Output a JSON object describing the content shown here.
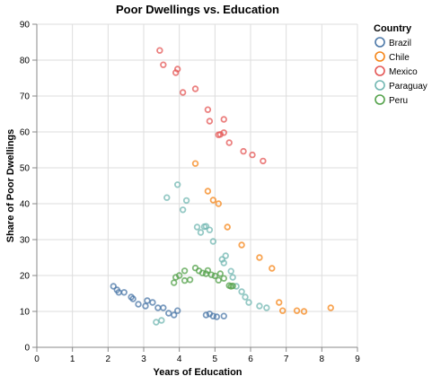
{
  "chart_data": {
    "type": "scatter",
    "title": "Poor Dwellings vs. Education",
    "xlabel": "Years of Education",
    "ylabel": "Share of Poor Dwellings",
    "xlim": [
      0,
      9
    ],
    "ylim": [
      0,
      90
    ],
    "x_ticks": [
      "0",
      "1",
      "2",
      "3",
      "4",
      "5",
      "6",
      "7",
      "8",
      "9"
    ],
    "y_ticks": [
      "0",
      "10",
      "20",
      "30",
      "40",
      "50",
      "60",
      "70",
      "80",
      "90"
    ],
    "grid": true,
    "legend_title": "Country",
    "legend_position": "right",
    "series": [
      {
        "name": "Brazil",
        "color": "#4c78a8",
        "points": [
          [
            2.15,
            17
          ],
          [
            2.25,
            16
          ],
          [
            2.3,
            15.3
          ],
          [
            2.45,
            15.3
          ],
          [
            2.65,
            14
          ],
          [
            2.7,
            13.5
          ],
          [
            2.85,
            12
          ],
          [
            3.05,
            11.5
          ],
          [
            3.1,
            13
          ],
          [
            3.25,
            12.5
          ],
          [
            3.4,
            11
          ],
          [
            3.55,
            11
          ],
          [
            3.7,
            9.5
          ],
          [
            3.85,
            9
          ],
          [
            3.95,
            10.2
          ],
          [
            4.75,
            9
          ],
          [
            4.85,
            9.3
          ],
          [
            4.95,
            8.7
          ],
          [
            5.05,
            8.5
          ],
          [
            5.25,
            8.7
          ]
        ]
      },
      {
        "name": "Chile",
        "color": "#f58518",
        "points": [
          [
            4.45,
            51.2
          ],
          [
            4.8,
            43.5
          ],
          [
            4.95,
            41
          ],
          [
            5.1,
            40
          ],
          [
            5.35,
            33.5
          ],
          [
            5.75,
            28.5
          ],
          [
            6.25,
            25
          ],
          [
            6.6,
            22
          ],
          [
            6.8,
            12.5
          ],
          [
            6.9,
            10.2
          ],
          [
            7.3,
            10.2
          ],
          [
            7.5,
            10
          ],
          [
            8.25,
            11
          ]
        ]
      },
      {
        "name": "Mexico",
        "color": "#e45756",
        "points": [
          [
            3.45,
            82.7
          ],
          [
            3.55,
            78.7
          ],
          [
            3.9,
            76.5
          ],
          [
            3.95,
            77.5
          ],
          [
            4.1,
            71
          ],
          [
            4.45,
            72
          ],
          [
            4.8,
            66.2
          ],
          [
            4.85,
            63
          ],
          [
            5.1,
            59.2
          ],
          [
            5.15,
            59.3
          ],
          [
            5.25,
            59.8
          ],
          [
            5.25,
            63.5
          ],
          [
            5.4,
            57
          ],
          [
            5.8,
            54.6
          ],
          [
            6.05,
            53.6
          ],
          [
            6.35,
            51.9
          ]
        ]
      },
      {
        "name": "Paraguay",
        "color": "#72b7b2",
        "points": [
          [
            3.65,
            41.7
          ],
          [
            3.95,
            45.3
          ],
          [
            4.1,
            38.3
          ],
          [
            4.2,
            40.9
          ],
          [
            4.5,
            33.5
          ],
          [
            4.6,
            32
          ],
          [
            4.7,
            33.6
          ],
          [
            4.75,
            33.7
          ],
          [
            4.85,
            32.7
          ],
          [
            4.95,
            29.5
          ],
          [
            5.2,
            24.5
          ],
          [
            5.25,
            23.5
          ],
          [
            5.3,
            25.5
          ],
          [
            5.45,
            21.2
          ],
          [
            5.5,
            19.5
          ],
          [
            5.6,
            17
          ],
          [
            5.75,
            15.5
          ],
          [
            5.85,
            14
          ],
          [
            5.95,
            12.5
          ],
          [
            6.25,
            11.5
          ],
          [
            6.45,
            11
          ],
          [
            3.35,
            7
          ],
          [
            3.5,
            7.5
          ]
        ]
      },
      {
        "name": "Peru",
        "color": "#54a24b",
        "points": [
          [
            3.85,
            18
          ],
          [
            3.9,
            19.5
          ],
          [
            4.0,
            20
          ],
          [
            4.15,
            18.6
          ],
          [
            4.3,
            18.8
          ],
          [
            4.15,
            21.3
          ],
          [
            4.45,
            22.1
          ],
          [
            4.55,
            21.3
          ],
          [
            4.65,
            20.7
          ],
          [
            4.75,
            20.5
          ],
          [
            4.8,
            21.4
          ],
          [
            4.9,
            20.2
          ],
          [
            5.0,
            19.9
          ],
          [
            5.1,
            18.7
          ],
          [
            5.15,
            20.5
          ],
          [
            5.25,
            19.2
          ],
          [
            5.4,
            17.2
          ],
          [
            5.5,
            17.1
          ],
          [
            5.45,
            17
          ]
        ]
      }
    ]
  }
}
